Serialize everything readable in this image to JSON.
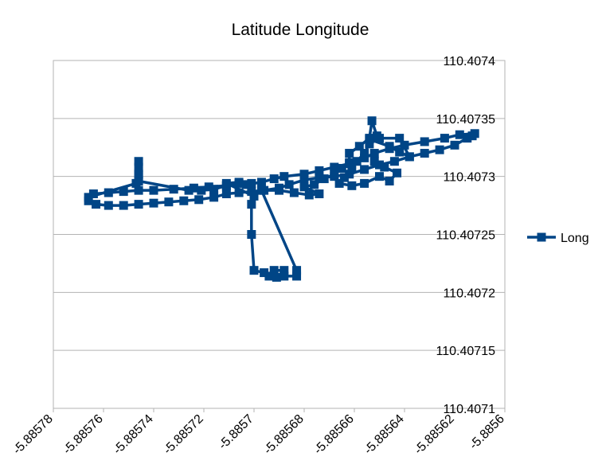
{
  "chart_data": {
    "type": "line",
    "title": "Latitude Longitude",
    "xlabel": "",
    "ylabel": "",
    "xlim": [
      -5.88578,
      -5.8856
    ],
    "ylim": [
      110.4071,
      110.4074
    ],
    "x_ticks": [
      -5.88578,
      -5.88576,
      -5.88574,
      -5.88572,
      -5.8857,
      -5.88568,
      -5.88566,
      -5.88564,
      -5.88562,
      -5.8856
    ],
    "x_tick_labels": [
      "-5.88578",
      "-5.88576",
      "-5.88574",
      "-5.88572",
      "-5.8857",
      "-5.88568",
      "-5.88566",
      "-5.88564",
      "-5.88562",
      "-5.8856"
    ],
    "y_ticks": [
      110.4071,
      110.40715,
      110.4072,
      110.40725,
      110.4073,
      110.40735,
      110.4074
    ],
    "y_tick_labels": [
      "110.4071",
      "110.40715",
      "110.4072",
      "110.40725",
      "110.4073",
      "110.40735",
      "110.4074"
    ],
    "grid": "horizontal",
    "legend_position": "right",
    "color": "#004586",
    "series": [
      {
        "name": "Long",
        "points": [
          [
            -5.885766,
            110.407279
          ],
          [
            -5.885763,
            110.407276
          ],
          [
            -5.885758,
            110.407275
          ],
          [
            -5.885752,
            110.407275
          ],
          [
            -5.885746,
            110.407276
          ],
          [
            -5.88574,
            110.407277
          ],
          [
            -5.885734,
            110.407278
          ],
          [
            -5.885728,
            110.407279
          ],
          [
            -5.885722,
            110.40728
          ],
          [
            -5.885716,
            110.407282
          ],
          [
            -5.885711,
            110.407285
          ],
          [
            -5.885706,
            110.407286
          ],
          [
            -5.885701,
            110.407287
          ],
          [
            -5.885696,
            110.407288
          ],
          [
            -5.88569,
            110.40729
          ],
          [
            -5.885686,
            110.407293
          ],
          [
            -5.88568,
            110.407297
          ],
          [
            -5.885674,
            110.407299
          ],
          [
            -5.885668,
            110.4073
          ],
          [
            -5.885662,
            110.407302
          ],
          [
            -5.885656,
            110.407306
          ],
          [
            -5.88565,
            110.40731
          ],
          [
            -5.885644,
            110.407313
          ],
          [
            -5.885638,
            110.407317
          ],
          [
            -5.885632,
            110.40732
          ],
          [
            -5.885626,
            110.407323
          ],
          [
            -5.88562,
            110.407327
          ],
          [
            -5.885615,
            110.407333
          ],
          [
            -5.885613,
            110.407335
          ],
          [
            -5.885612,
            110.407337
          ],
          [
            -5.885618,
            110.407336
          ],
          [
            -5.885624,
            110.407333
          ],
          [
            -5.885632,
            110.40733
          ],
          [
            -5.88564,
            110.407327
          ],
          [
            -5.885646,
            110.407324
          ],
          [
            -5.885652,
            110.40732
          ],
          [
            -5.885656,
            110.407316
          ],
          [
            -5.885662,
            110.407311
          ],
          [
            -5.885668,
            110.407308
          ],
          [
            -5.885674,
            110.407305
          ],
          [
            -5.88568,
            110.407302
          ],
          [
            -5.885688,
            110.4073
          ],
          [
            -5.885692,
            110.407298
          ],
          [
            -5.885697,
            110.407295
          ],
          [
            -5.885703,
            110.407293
          ],
          [
            -5.885711,
            110.407292
          ],
          [
            -5.885718,
            110.407291
          ],
          [
            -5.885724,
            110.40729
          ],
          [
            -5.885732,
            110.407289
          ],
          [
            -5.88574,
            110.407288
          ],
          [
            -5.885746,
            110.407288
          ],
          [
            -5.885752,
            110.407287
          ],
          [
            -5.885758,
            110.407286
          ],
          [
            -5.885764,
            110.407285
          ],
          [
            -5.885766,
            110.407282
          ],
          [
            -5.885747,
            110.407294
          ],
          [
            -5.885746,
            110.407301
          ],
          [
            -5.885746,
            110.407308
          ],
          [
            -5.885746,
            110.407313
          ],
          [
            -5.885746,
            110.407302
          ],
          [
            -5.885746,
            110.407296
          ],
          [
            -5.885726,
            110.407288
          ],
          [
            -5.885721,
            110.407288
          ],
          [
            -5.885716,
            110.407289
          ],
          [
            -5.885711,
            110.407292
          ],
          [
            -5.885706,
            110.407294
          ],
          [
            -5.885701,
            110.407294
          ],
          [
            -5.885706,
            110.407295
          ],
          [
            -5.885711,
            110.407294
          ],
          [
            -5.8857,
            110.407283
          ],
          [
            -5.885701,
            110.407276
          ],
          [
            -5.885701,
            110.40725
          ],
          [
            -5.8857,
            110.407219
          ],
          [
            -5.885696,
            110.407217
          ],
          [
            -5.885694,
            110.407214
          ],
          [
            -5.885691,
            110.407213
          ],
          [
            -5.885692,
            110.407219
          ],
          [
            -5.885688,
            110.407219
          ],
          [
            -5.885688,
            110.407214
          ],
          [
            -5.885683,
            110.407214
          ],
          [
            -5.885683,
            110.407219
          ],
          [
            -5.885697,
            110.407288
          ],
          [
            -5.88569,
            110.407288
          ],
          [
            -5.885684,
            110.407286
          ],
          [
            -5.885678,
            110.407284
          ],
          [
            -5.885674,
            110.407285
          ],
          [
            -5.88568,
            110.407291
          ],
          [
            -5.885676,
            110.407293
          ],
          [
            -5.885672,
            110.407298
          ],
          [
            -5.885668,
            110.407302
          ],
          [
            -5.885665,
            110.407307
          ],
          [
            -5.885662,
            110.407312
          ],
          [
            -5.885662,
            110.40732
          ],
          [
            -5.885658,
            110.407326
          ],
          [
            -5.885654,
            110.407333
          ],
          [
            -5.885653,
            110.407348
          ],
          [
            -5.885651,
            110.407335
          ],
          [
            -5.885654,
            110.407332
          ],
          [
            -5.885646,
            110.407326
          ],
          [
            -5.885642,
            110.407321
          ],
          [
            -5.885638,
            110.407317
          ],
          [
            -5.885642,
            110.407333
          ],
          [
            -5.88565,
            110.407333
          ],
          [
            -5.885654,
            110.407328
          ],
          [
            -5.885656,
            110.40732
          ],
          [
            -5.885659,
            110.407313
          ],
          [
            -5.885661,
            110.407307
          ],
          [
            -5.885664,
            110.407299
          ],
          [
            -5.885666,
            110.407294
          ],
          [
            -5.885661,
            110.407292
          ],
          [
            -5.885656,
            110.407294
          ],
          [
            -5.88565,
            110.4073
          ],
          [
            -5.885646,
            110.407296
          ],
          [
            -5.885643,
            110.407303
          ],
          [
            -5.885648,
            110.407308
          ],
          [
            -5.885652,
            110.407313
          ]
        ]
      }
    ]
  }
}
